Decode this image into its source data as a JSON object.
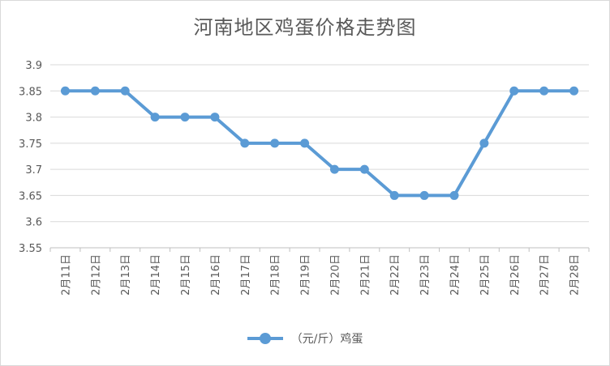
{
  "chart_data": {
    "type": "line",
    "title": "河南地区鸡蛋价格走势图",
    "xlabel": "",
    "ylabel": "",
    "categories": [
      "2月11日",
      "2月12日",
      "2月13日",
      "2月14日",
      "2月15日",
      "2月16日",
      "2月17日",
      "2月18日",
      "2月19日",
      "2月20日",
      "2月21日",
      "2月22日",
      "2月23日",
      "2月24日",
      "2月25日",
      "2月26日",
      "2月27日",
      "2月28日"
    ],
    "series": [
      {
        "name": "（元/斤）鸡蛋",
        "values": [
          3.85,
          3.85,
          3.85,
          3.8,
          3.8,
          3.8,
          3.75,
          3.75,
          3.75,
          3.7,
          3.7,
          3.65,
          3.65,
          3.65,
          3.75,
          3.85,
          3.85,
          3.85
        ],
        "color": "#5b9bd5"
      }
    ],
    "ylim": [
      3.55,
      3.9
    ],
    "yticks": [
      "3.9",
      "3.85",
      "3.8",
      "3.75",
      "3.7",
      "3.65",
      "3.6",
      "3.55"
    ],
    "grid": true,
    "legend": "bottom"
  }
}
